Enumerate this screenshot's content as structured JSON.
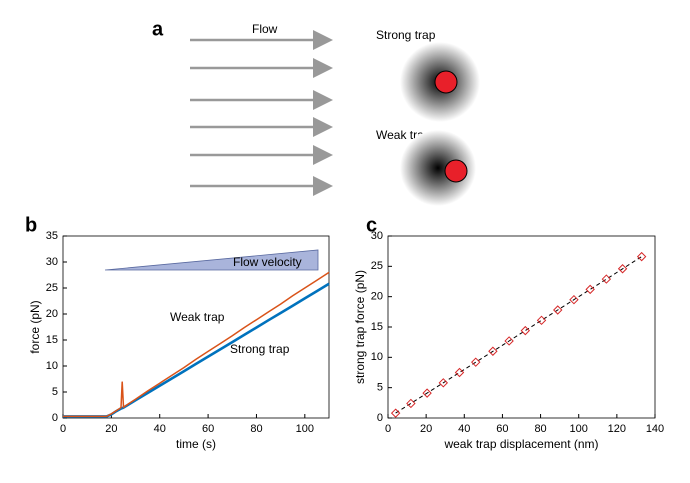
{
  "panel_labels": [
    "a",
    "b",
    "c"
  ],
  "diagram": {
    "flow_label": "Flow",
    "strong_trap": "Strong trap",
    "weak_trap": "Weak trap"
  },
  "chart_data": [
    {
      "type": "line",
      "xlabel": "time (s)",
      "ylabel": "force (pN)",
      "annotation": "Flow velocity",
      "xlim": [
        0,
        110
      ],
      "ylim": [
        0,
        35
      ],
      "xticks": [
        0,
        20,
        40,
        60,
        80,
        100
      ],
      "yticks": [
        0,
        5,
        10,
        15,
        20,
        25,
        30,
        35
      ],
      "x": [
        0,
        10,
        18,
        20,
        22,
        24,
        24.5,
        25,
        30,
        35,
        40,
        45,
        50,
        55,
        60,
        65,
        70,
        75,
        80,
        85,
        90,
        95,
        100,
        105,
        110
      ],
      "series": [
        {
          "name": "Weak trap",
          "color": "#d95319",
          "values": [
            0.3,
            0.3,
            0.3,
            0.8,
            1.4,
            2.0,
            7.0,
            2.1,
            3.6,
            5.2,
            6.7,
            8.2,
            9.7,
            11.3,
            12.8,
            14.3,
            15.8,
            17.4,
            18.9,
            20.4,
            21.9,
            23.5,
            25.0,
            26.5,
            28.0
          ]
        },
        {
          "name": "Strong trap",
          "color": "#0072bd",
          "values": [
            0.3,
            0.3,
            0.3,
            0.7,
            1.3,
            1.8,
            1.9,
            2.0,
            3.4,
            4.8,
            6.2,
            7.6,
            9.0,
            10.4,
            11.8,
            13.2,
            14.6,
            16.0,
            17.4,
            18.8,
            20.2,
            21.6,
            23.0,
            24.4,
            25.8
          ]
        }
      ]
    },
    {
      "type": "scatter",
      "xlabel": "weak trap displacement (nm)",
      "ylabel": "strong trap force (pN)",
      "xlim": [
        0,
        140
      ],
      "ylim": [
        0,
        30
      ],
      "xticks": [
        0,
        20,
        40,
        60,
        80,
        100,
        120,
        140
      ],
      "yticks": [
        0,
        5,
        10,
        15,
        20,
        25,
        30
      ],
      "color": "#d62728",
      "x": [
        4,
        12,
        20.5,
        29,
        37.5,
        46,
        55,
        63.5,
        72,
        80.5,
        89,
        97.5,
        106,
        114.5,
        123,
        133
      ],
      "values": [
        0.8,
        2.4,
        4.1,
        5.8,
        7.5,
        9.2,
        11.0,
        12.7,
        14.4,
        16.1,
        17.8,
        19.5,
        21.2,
        22.9,
        24.6,
        26.6
      ]
    }
  ]
}
